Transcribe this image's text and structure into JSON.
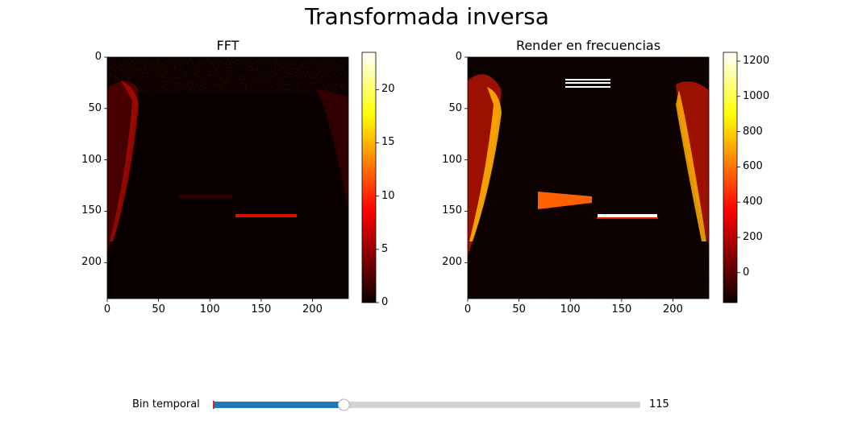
{
  "figure": {
    "title": "Transformada inversa"
  },
  "panels": [
    {
      "title": "FFT",
      "xticks": [
        0,
        50,
        100,
        150,
        200
      ],
      "yticks": [
        0,
        50,
        100,
        150,
        200
      ],
      "extent": [
        0,
        235
      ],
      "colorbar": {
        "ticks": [
          0,
          5,
          10,
          15,
          20
        ],
        "range": [
          0,
          23.5
        ],
        "colormap": "hot"
      }
    },
    {
      "title": "Render en frecuencias",
      "xticks": [
        0,
        50,
        100,
        150,
        200
      ],
      "yticks": [
        0,
        50,
        100,
        150,
        200
      ],
      "extent": [
        0,
        235
      ],
      "colorbar": {
        "ticks": [
          0,
          200,
          400,
          600,
          800,
          1000,
          1200
        ],
        "range": [
          -170,
          1250
        ],
        "colormap": "hot"
      }
    }
  ],
  "slider": {
    "label": "Bin temporal",
    "value": 115,
    "fraction": 0.305,
    "track_color": "#d3d3d3",
    "fill_color": "#1f77b4"
  }
}
